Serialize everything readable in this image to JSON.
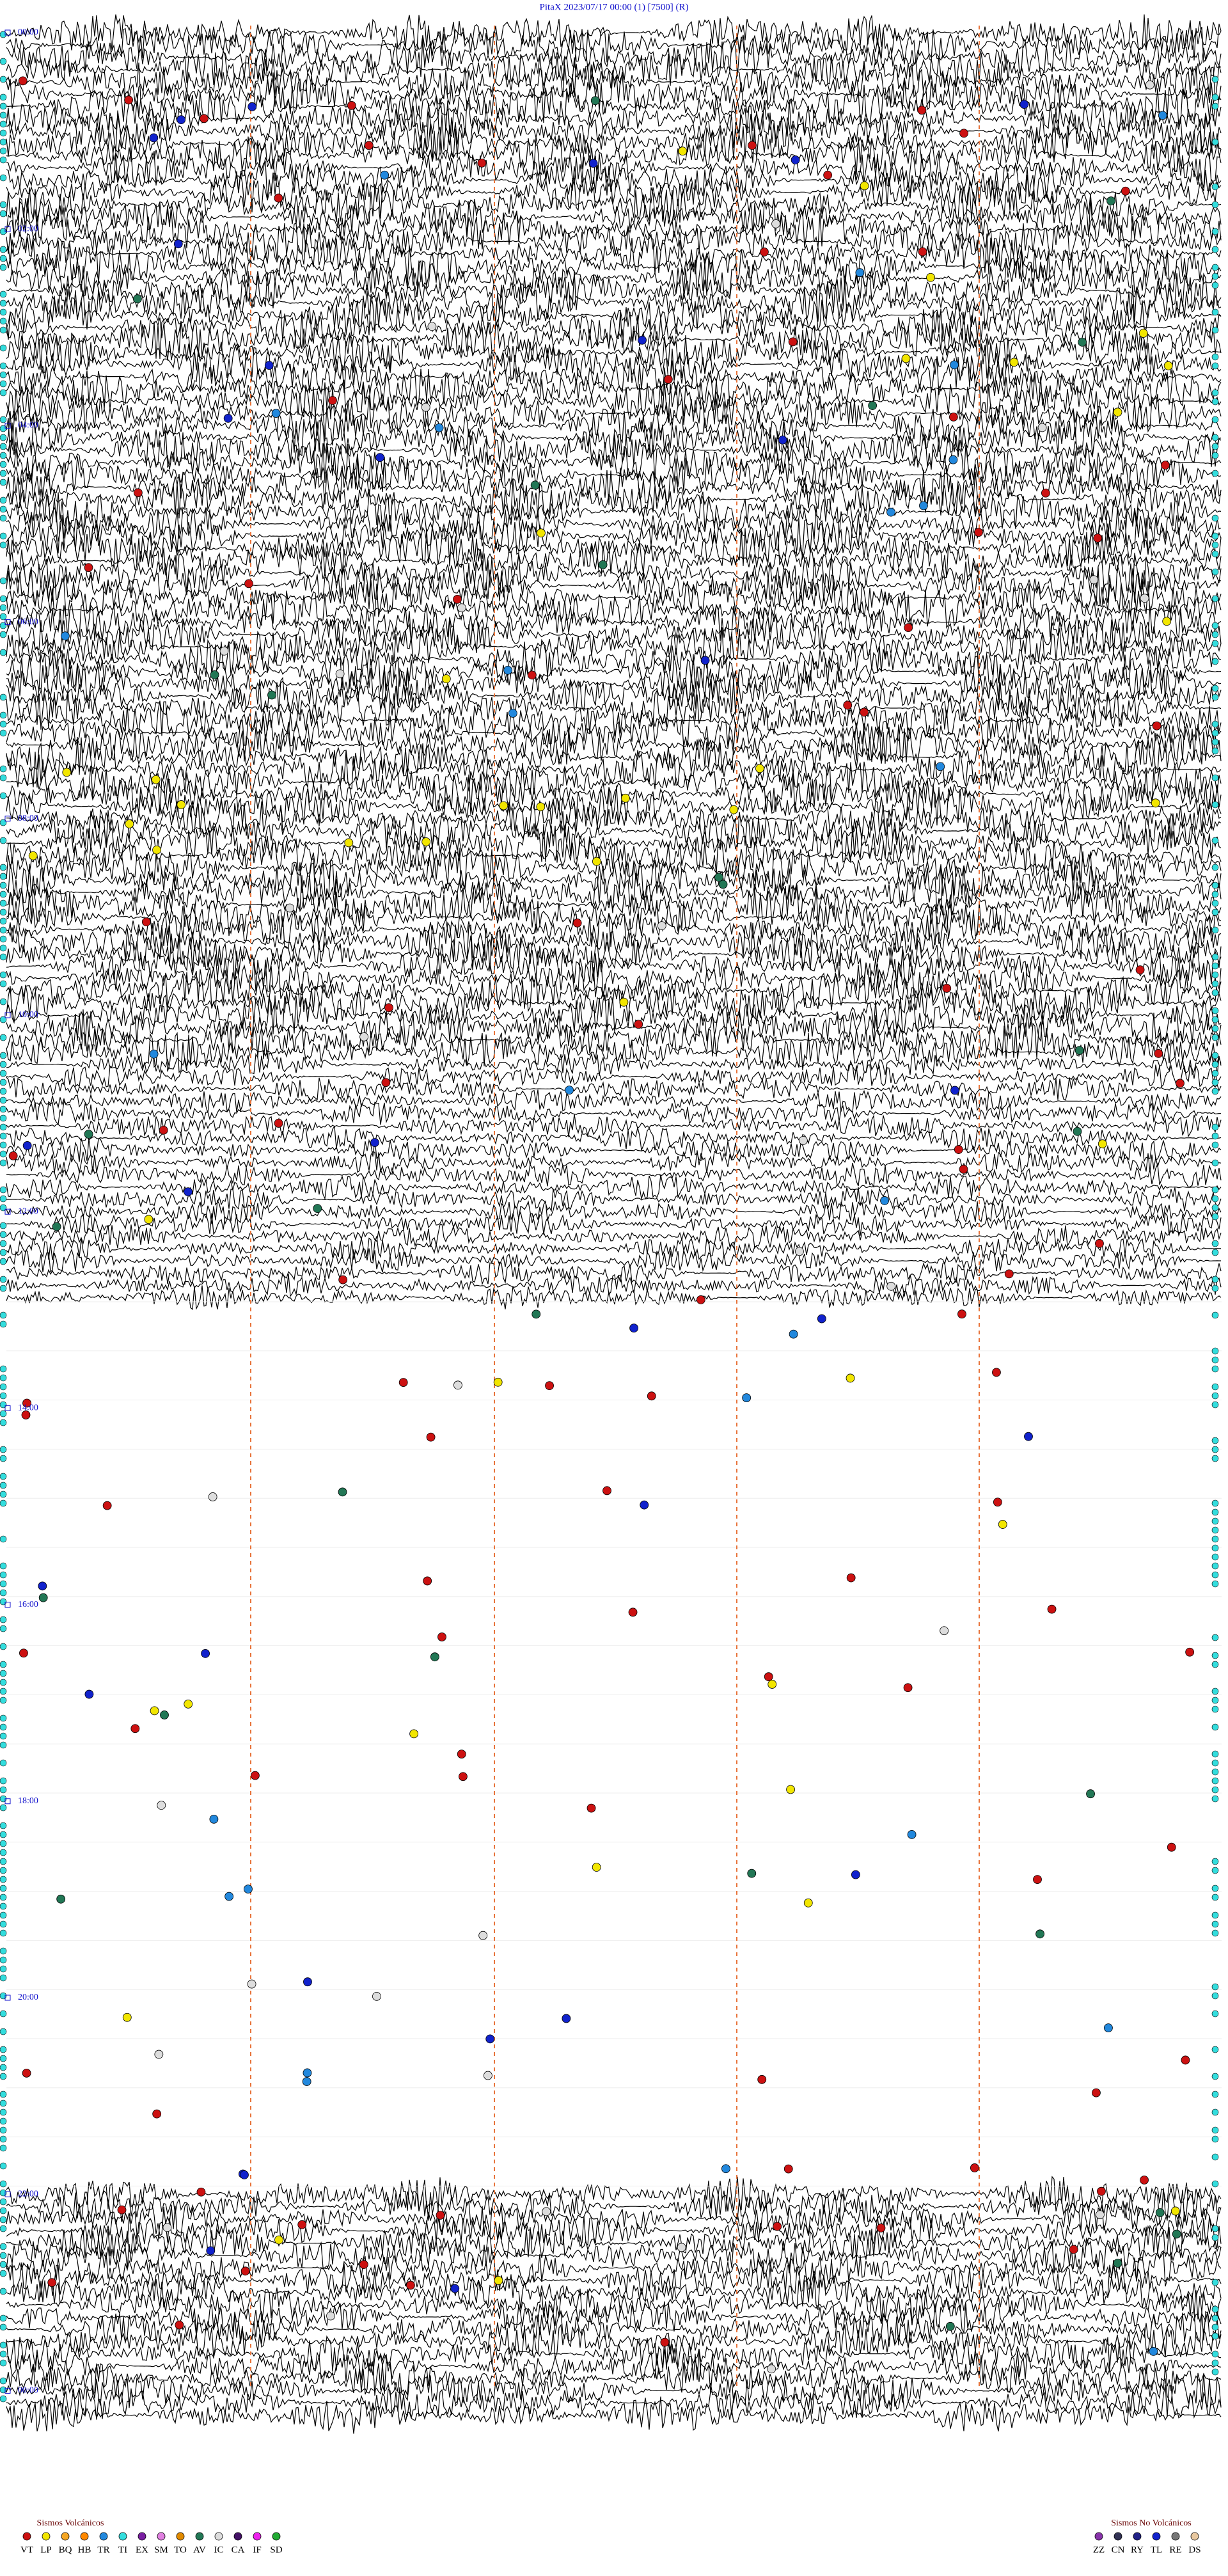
{
  "header": {
    "title": "PitaX     2023/07/17 00:00     (1)     [7500]     (R)"
  },
  "time_labels": [
    "00:00",
    "02:00",
    "04:00",
    "06:00",
    "08:00",
    "10:00",
    "12:00",
    "14:00",
    "16:00",
    "18:00",
    "20:00",
    "22:00",
    "00:00"
  ],
  "legend": {
    "volcanic": {
      "title": "Sismos Volcánicos",
      "items": [
        {
          "code": "VT",
          "color": "#cc1111"
        },
        {
          "code": "LP",
          "color": "#f2e600"
        },
        {
          "code": "BQ",
          "color": "#f5a623"
        },
        {
          "code": "HB",
          "color": "#ff8800"
        },
        {
          "code": "TR",
          "color": "#2288dd"
        },
        {
          "code": "TI",
          "color": "#33dddd"
        },
        {
          "code": "EX",
          "color": "#7a1fa2"
        },
        {
          "code": "SM",
          "color": "#e080e0"
        },
        {
          "code": "TO",
          "color": "#e08a00"
        },
        {
          "code": "AV",
          "color": "#227755"
        },
        {
          "code": "IC",
          "color": "#dddddd"
        },
        {
          "code": "CA",
          "color": "#441166"
        },
        {
          "code": "IF",
          "color": "#ee22ee"
        },
        {
          "code": "SD",
          "color": "#22aa33"
        }
      ]
    },
    "non_volcanic": {
      "title": "Sismos No Volcánicos",
      "items": [
        {
          "code": "ZZ",
          "color": "#8833aa"
        },
        {
          "code": "CN",
          "color": "#333355"
        },
        {
          "code": "RY",
          "color": "#222288"
        },
        {
          "code": "TL",
          "color": "#1122cc"
        },
        {
          "code": "RE",
          "color": "#777777"
        },
        {
          "code": "DS",
          "color": "#e8c8a0"
        }
      ]
    }
  }
}
